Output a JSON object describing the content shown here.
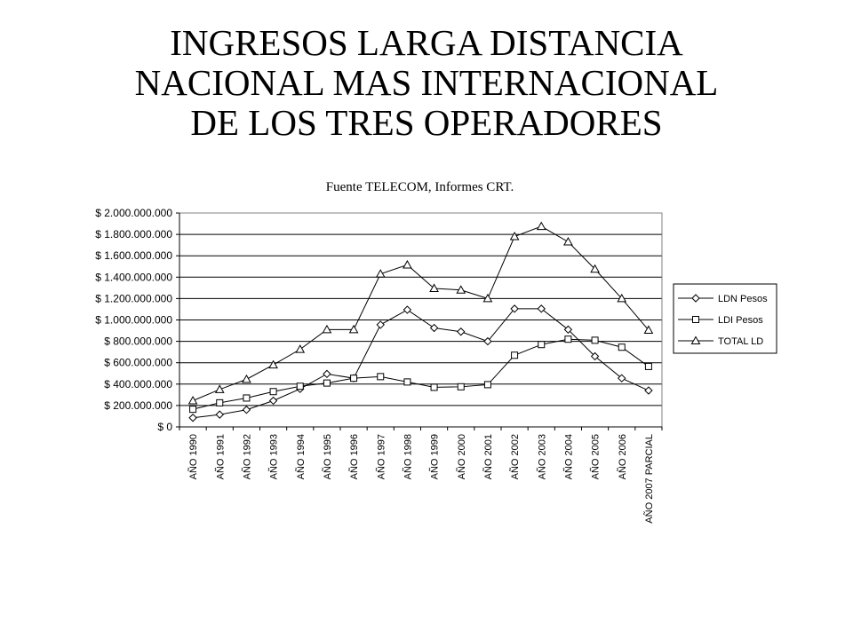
{
  "slide": {
    "title_lines": [
      "INGRESOS LARGA DISTANCIA",
      "NACIONAL MAS INTERNACIONAL",
      "DE LOS TRES OPERADORES"
    ],
    "source": "Fuente TELECOM, Informes CRT."
  },
  "chart_data": {
    "type": "line",
    "title": "",
    "xlabel": "",
    "ylabel": "",
    "ylim": [
      0,
      2000000000
    ],
    "yticks": [
      {
        "value": 0,
        "label": "$ 0"
      },
      {
        "value": 200000000,
        "label": "$ 200.000.000"
      },
      {
        "value": 400000000,
        "label": "$ 400.000.000"
      },
      {
        "value": 600000000,
        "label": "$ 600.000.000"
      },
      {
        "value": 800000000,
        "label": "$ 800.000.000"
      },
      {
        "value": 1000000000,
        "label": "$ 1.000.000.000"
      },
      {
        "value": 1200000000,
        "label": "$ 1.200.000.000"
      },
      {
        "value": 1400000000,
        "label": "$ 1.400.000.000"
      },
      {
        "value": 1600000000,
        "label": "$ 1.600.000.000"
      },
      {
        "value": 1800000000,
        "label": "$ 1.800.000.000"
      },
      {
        "value": 2000000000,
        "label": "$ 2.000.000.000"
      }
    ],
    "grid": "horizontal",
    "legend": "right",
    "categories": [
      "AÑO 1990",
      "AÑO 1991",
      "AÑO 1992",
      "AÑO 1993",
      "AÑO 1994",
      "AÑO 1995",
      "AÑO 1996",
      "AÑO 1997",
      "AÑO 1998",
      "AÑO 1999",
      "AÑO 2000",
      "AÑO 2001",
      "AÑO 2002",
      "AÑO 2003",
      "AÑO 2004",
      "AÑO 2005",
      "AÑO 2006",
      "AÑO 2007 PARCIAL"
    ],
    "series": [
      {
        "name": "LDN Pesos",
        "marker": "diamond",
        "values": [
          85000000,
          115000000,
          160000000,
          245000000,
          355000000,
          495000000,
          455000000,
          955000000,
          1095000000,
          925000000,
          890000000,
          800000000,
          1105000000,
          1105000000,
          910000000,
          660000000,
          455000000,
          340000000
        ]
      },
      {
        "name": "LDI Pesos",
        "marker": "square",
        "values": [
          165000000,
          225000000,
          270000000,
          330000000,
          380000000,
          410000000,
          455000000,
          470000000,
          420000000,
          370000000,
          375000000,
          395000000,
          670000000,
          770000000,
          820000000,
          810000000,
          745000000,
          565000000
        ]
      },
      {
        "name": "TOTAL LD",
        "marker": "triangle",
        "values": [
          245000000,
          350000000,
          445000000,
          580000000,
          725000000,
          910000000,
          910000000,
          1430000000,
          1515000000,
          1295000000,
          1280000000,
          1200000000,
          1780000000,
          1875000000,
          1730000000,
          1475000000,
          1200000000,
          905000000
        ]
      }
    ]
  }
}
